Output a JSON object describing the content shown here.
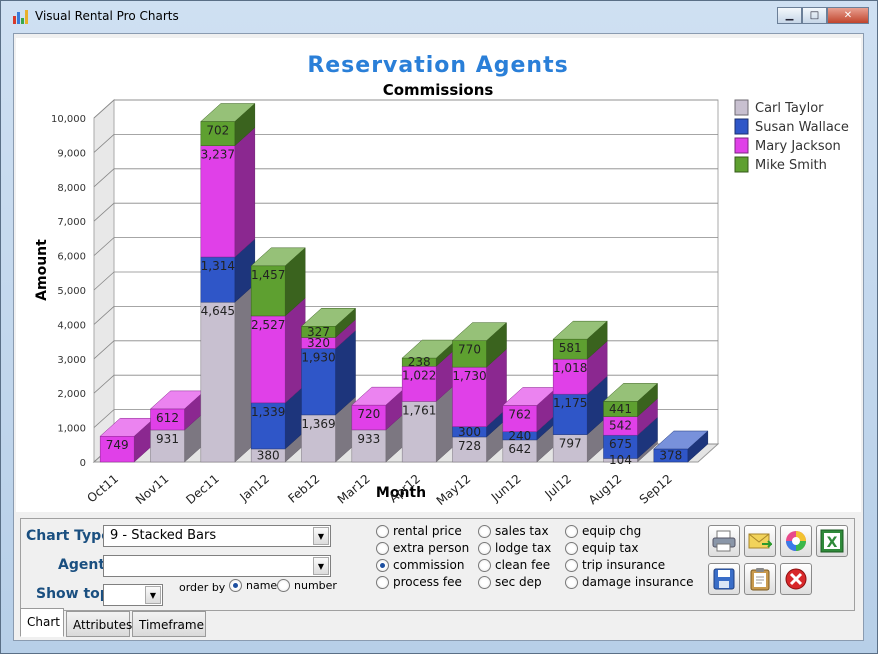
{
  "window": {
    "title": "Visual Rental Pro Charts",
    "controls": {
      "minimize": "▁",
      "maximize": "□",
      "close": "✕"
    }
  },
  "chart_data": {
    "type": "bar",
    "stacked": true,
    "three_d": true,
    "title": "Reservation Agents",
    "subtitle": "Commissions",
    "xlabel": "Month",
    "ylabel": "Amount",
    "ylim": [
      0,
      10000
    ],
    "yticks": [
      "0",
      "1,000",
      "2,000",
      "3,000",
      "4,000",
      "5,000",
      "6,000",
      "7,000",
      "8,000",
      "9,000",
      "10,000"
    ],
    "grid": true,
    "legend_position": "top-right",
    "categories": [
      "Oct11",
      "Nov11",
      "Dec11",
      "Jan12",
      "Feb12",
      "Mar12",
      "Apr12",
      "May12",
      "Jun12",
      "Jul12",
      "Aug12",
      "Sep12"
    ],
    "series": [
      {
        "name": "Carl Taylor",
        "color": "#c8c0d0",
        "values": [
          0,
          931,
          4645,
          380,
          1369,
          933,
          1761,
          728,
          642,
          797,
          104,
          0
        ],
        "labels": [
          "",
          "931",
          "4,645",
          "380",
          "1,369",
          "933",
          "1,761",
          "728",
          "642",
          "797",
          "104",
          ""
        ]
      },
      {
        "name": "Susan Wallace",
        "color": "#2f56c8",
        "values": [
          0,
          0,
          1314,
          1339,
          1930,
          0,
          0,
          300,
          240,
          1175,
          675,
          378
        ],
        "labels": [
          "",
          "",
          "1,314",
          "1,339",
          "1,930",
          "",
          "",
          "300",
          "240",
          "1,175",
          "675",
          "378"
        ]
      },
      {
        "name": "Mary Jackson",
        "color": "#e040e8",
        "values": [
          749,
          612,
          3237,
          2527,
          320,
          720,
          1022,
          1730,
          762,
          1018,
          542,
          0
        ],
        "labels": [
          "749",
          "612",
          "3,237",
          "2,527",
          "320",
          "720",
          "1,022",
          "1,730",
          "762",
          "1,018",
          "542",
          ""
        ]
      },
      {
        "name": "Mike Smith",
        "color": "#5ea030",
        "values": [
          0,
          0,
          702,
          1457,
          327,
          0,
          238,
          770,
          0,
          581,
          441,
          0
        ],
        "labels": [
          "",
          "",
          "702",
          "1,457",
          "327",
          "",
          "238",
          "770",
          "",
          "581",
          "441",
          ""
        ]
      }
    ]
  },
  "controls": {
    "chart_type_label": "Chart Type",
    "chart_type_value": "9 - Stacked Bars",
    "agent_label": "Agent",
    "agent_value": "",
    "show_top_label": "Show top",
    "show_top_value": "",
    "order_by_label": "order by",
    "order_name": "name",
    "order_number": "number",
    "fields": [
      {
        "label": "rental price",
        "checked": false
      },
      {
        "label": "extra person",
        "checked": false
      },
      {
        "label": "commission",
        "checked": true
      },
      {
        "label": "process fee",
        "checked": false
      },
      {
        "label": "sales tax",
        "checked": false
      },
      {
        "label": "lodge tax",
        "checked": false
      },
      {
        "label": "clean fee",
        "checked": false
      },
      {
        "label": "sec dep",
        "checked": false
      },
      {
        "label": "equip chg",
        "checked": false
      },
      {
        "label": "equip tax",
        "checked": false
      },
      {
        "label": "trip insurance",
        "checked": false
      },
      {
        "label": "damage insurance",
        "checked": false
      }
    ],
    "toolbar_icons": [
      "print-icon",
      "email-icon",
      "color-palette-icon",
      "excel-icon",
      "save-icon",
      "clipboard-icon",
      "delete-icon"
    ]
  },
  "tabs": [
    "Chart",
    "Attributes",
    "Timeframe"
  ]
}
